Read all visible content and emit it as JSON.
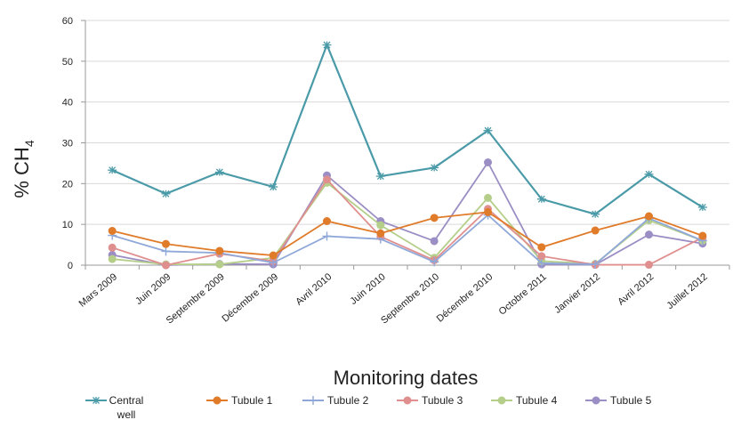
{
  "chart_data": {
    "type": "line",
    "title": "",
    "xlabel": "Monitoring dates",
    "ylabel": {
      "main": "% CH",
      "sub": "4"
    },
    "ylim": [
      0,
      60
    ],
    "yticks": [
      0,
      10,
      20,
      30,
      40,
      50,
      60
    ],
    "grid": "horizontal",
    "legend_position": "bottom",
    "categories": [
      "Mars 2009",
      "Juin 2009",
      "Septembre 2009",
      "Décembre 2009",
      "Avril 2010",
      "Juin 2010",
      "Septembre 2010",
      "Décembre 2010",
      "Octobre 2011",
      "Janvier 2012",
      "Avril 2012",
      "Juillet 2012"
    ],
    "series": [
      {
        "name": "Central well",
        "legend_lines": [
          "Central",
          "well"
        ],
        "color": "#4a9aa8",
        "marker": "asterisk",
        "values": [
          23.3,
          17.5,
          22.8,
          19.2,
          54.0,
          21.8,
          23.9,
          33.0,
          16.2,
          12.5,
          22.3,
          14.2
        ]
      },
      {
        "name": "Tubule 1",
        "color": "#e07b2a",
        "marker": "circle",
        "values": [
          8.4,
          5.2,
          3.5,
          2.4,
          10.8,
          7.8,
          11.6,
          13.0,
          4.4,
          8.5,
          12.0,
          7.2
        ]
      },
      {
        "name": "Tubule 2",
        "color": "#8fa8d8",
        "marker": "plus",
        "values": [
          7.3,
          3.4,
          3.0,
          0.6,
          7.1,
          6.4,
          0.8,
          12.3,
          0.5,
          0.2,
          11.5,
          6.0
        ]
      },
      {
        "name": "Tubule 3",
        "color": "#e08f8f",
        "marker": "circle",
        "values": [
          4.3,
          0.0,
          2.8,
          1.0,
          21.0,
          7.0,
          1.2,
          13.8,
          2.2,
          0.1,
          0.1,
          6.8
        ]
      },
      {
        "name": "Tubule 4",
        "color": "#b5cf8a",
        "marker": "circle",
        "values": [
          1.5,
          0.2,
          0.2,
          1.8,
          20.2,
          9.8,
          1.8,
          16.5,
          1.0,
          0.3,
          11.0,
          6.0
        ]
      },
      {
        "name": "Tubule 5",
        "color": "#9b8ec4",
        "marker": "circle",
        "values": [
          2.5,
          0.0,
          0.3,
          0.2,
          22.0,
          10.8,
          5.9,
          25.2,
          0.2,
          0.1,
          7.5,
          5.3
        ]
      }
    ]
  }
}
